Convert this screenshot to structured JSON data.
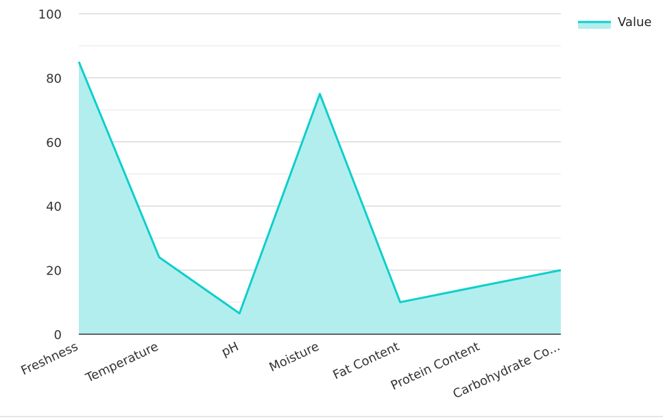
{
  "chart_data": {
    "type": "area",
    "categories": [
      "Freshness",
      "Temperature",
      "pH",
      "Moisture",
      "Fat Content",
      "Protein Content",
      "Carbohydrate Co..."
    ],
    "series": [
      {
        "name": "Value",
        "values": [
          85,
          24,
          6.5,
          75,
          10,
          15,
          20
        ]
      }
    ],
    "ylim": [
      0,
      100
    ],
    "yticks": [
      0,
      20,
      40,
      60,
      80,
      100
    ],
    "grid": true,
    "legend": "top-right",
    "colors": {
      "line": "#0ccfcc",
      "fill": "#b2eeed",
      "grid_major": "#c8c8c8",
      "grid_minor": "#e6e6e6",
      "axis": "#333333"
    }
  }
}
